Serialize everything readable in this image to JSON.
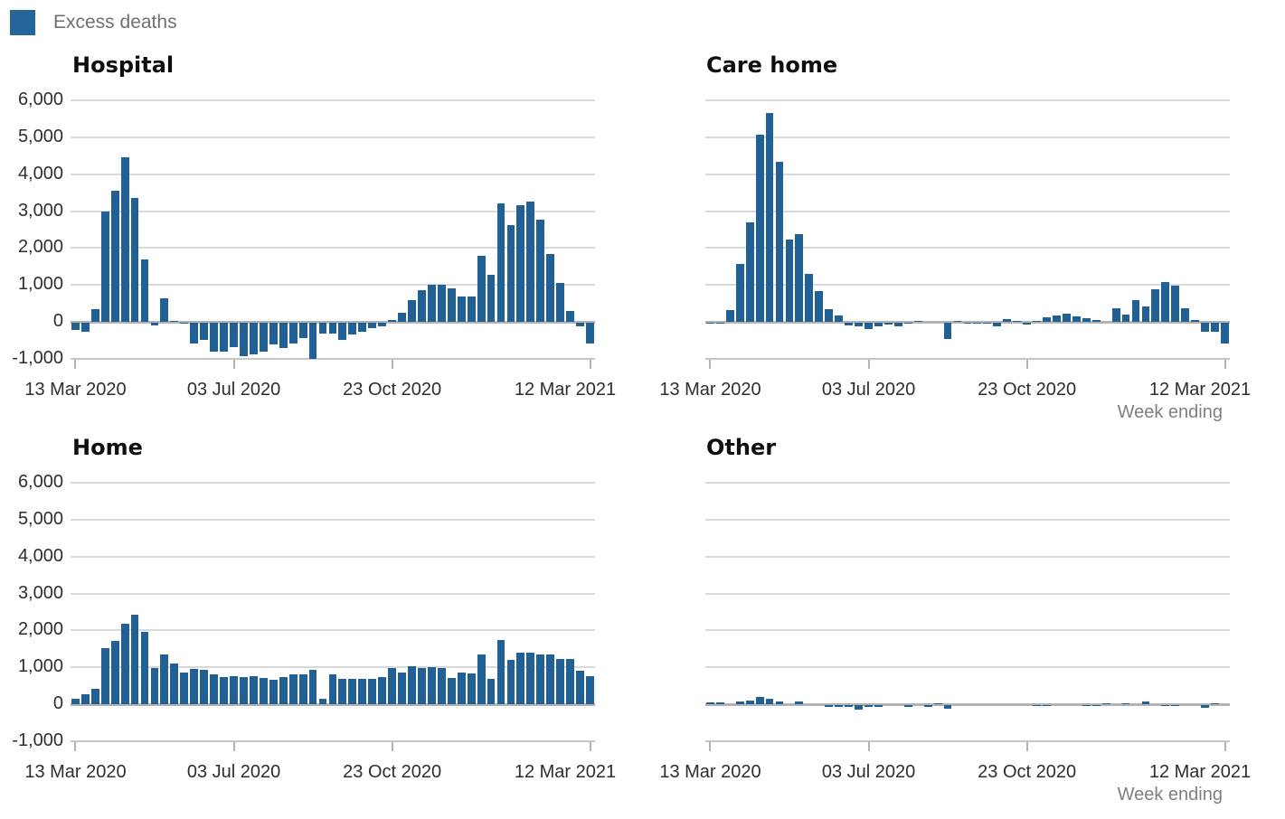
{
  "legend": {
    "label": "Excess deaths",
    "swatch_color": "#24669a"
  },
  "week_ending_label": "Week ending",
  "colors": {
    "bar": "#206095",
    "gridline": "#d9d9d9",
    "zero_line": "#b3b3b3",
    "axis_line": "#c6c6c6",
    "tick": "#b3b3b3",
    "axis_text": "#2e2e2e",
    "muted_text": "#7f7f80"
  },
  "chart_data": [
    {
      "type": "bar",
      "title": "Hospital",
      "series_name": "Excess deaths",
      "x_unit": "week",
      "n_weeks": 53,
      "x_range": [
        "13 Mar 2020",
        "12 Mar 2021"
      ],
      "ylim": [
        -1000,
        6000
      ],
      "grid": true,
      "y_axis_visible": true,
      "week_ending_visible": false,
      "y_ticks": [
        {
          "value": 6000,
          "label": "6,000"
        },
        {
          "value": 5000,
          "label": "5,000"
        },
        {
          "value": 4000,
          "label": "4,000"
        },
        {
          "value": 3000,
          "label": "3,000"
        },
        {
          "value": 2000,
          "label": "2,000"
        },
        {
          "value": 1000,
          "label": "1,000"
        },
        {
          "value": 0,
          "label": "0"
        },
        {
          "value": -1000,
          "label": "-1,000"
        }
      ],
      "x_ticks": [
        {
          "week": 1,
          "label": "13 Mar 2020"
        },
        {
          "week": 17,
          "label": "03 Jul 2020"
        },
        {
          "week": 33,
          "label": "23 Oct 2020"
        },
        {
          "week": 53,
          "label": "12 Mar 2021"
        }
      ],
      "values": [
        -200,
        -250,
        350,
        2980,
        3550,
        4450,
        3350,
        1700,
        -70,
        650,
        30,
        -30,
        -550,
        -450,
        -780,
        -790,
        -650,
        -890,
        -850,
        -780,
        -580,
        -690,
        -550,
        -420,
        -970,
        -300,
        -280,
        -450,
        -320,
        -250,
        -150,
        -100,
        50,
        250,
        600,
        850,
        1000,
        1000,
        900,
        700,
        700,
        1780,
        1280,
        3220,
        2620,
        3170,
        3270,
        2780,
        1850,
        1050,
        300,
        -100,
        -550
      ]
    },
    {
      "type": "bar",
      "title": "Care home",
      "series_name": "Excess deaths",
      "x_unit": "week",
      "n_weeks": 53,
      "x_range": [
        "13 Mar 2020",
        "12 Mar 2021"
      ],
      "ylim": [
        -1000,
        6000
      ],
      "grid": true,
      "y_axis_visible": false,
      "week_ending_visible": true,
      "y_ticks": [
        {
          "value": 6000,
          "label": "6,000"
        },
        {
          "value": 5000,
          "label": "5,000"
        },
        {
          "value": 4000,
          "label": "4,000"
        },
        {
          "value": 3000,
          "label": "3,000"
        },
        {
          "value": 2000,
          "label": "2,000"
        },
        {
          "value": 1000,
          "label": "1,000"
        },
        {
          "value": 0,
          "label": "0"
        },
        {
          "value": -1000,
          "label": "-1,000"
        }
      ],
      "x_ticks": [
        {
          "week": 1,
          "label": "13 Mar 2020"
        },
        {
          "week": 17,
          "label": "03 Jul 2020"
        },
        {
          "week": 33,
          "label": "23 Oct 2020"
        },
        {
          "week": 53,
          "label": "12 Mar 2021"
        }
      ],
      "values": [
        -30,
        -10,
        320,
        1570,
        2700,
        5080,
        5660,
        4330,
        2230,
        2380,
        1300,
        840,
        340,
        180,
        -60,
        -90,
        -180,
        -90,
        -40,
        -90,
        -20,
        30,
        0,
        0,
        -440,
        25,
        -20,
        -25,
        -30,
        -90,
        70,
        40,
        -55,
        25,
        130,
        180,
        215,
        160,
        90,
        60,
        0,
        380,
        200,
        590,
        430,
        885,
        1080,
        985,
        375,
        50,
        -230,
        -230,
        -560
      ]
    },
    {
      "type": "bar",
      "title": "Home",
      "series_name": "Excess deaths",
      "x_unit": "week",
      "n_weeks": 53,
      "x_range": [
        "13 Mar 2020",
        "12 Mar 2021"
      ],
      "ylim": [
        -1000,
        6000
      ],
      "grid": true,
      "y_axis_visible": true,
      "week_ending_visible": false,
      "y_ticks": [
        {
          "value": 6000,
          "label": "6,000"
        },
        {
          "value": 5000,
          "label": "5,000"
        },
        {
          "value": 4000,
          "label": "4,000"
        },
        {
          "value": 3000,
          "label": "3,000"
        },
        {
          "value": 2000,
          "label": "2,000"
        },
        {
          "value": 1000,
          "label": "1,000"
        },
        {
          "value": 0,
          "label": "0"
        },
        {
          "value": -1000,
          "label": "-1,000"
        }
      ],
      "x_ticks": [
        {
          "week": 1,
          "label": "13 Mar 2020"
        },
        {
          "week": 17,
          "label": "03 Jul 2020"
        },
        {
          "week": 33,
          "label": "23 Oct 2020"
        },
        {
          "week": 53,
          "label": "12 Mar 2021"
        }
      ],
      "values": [
        150,
        280,
        420,
        1520,
        1720,
        2170,
        2420,
        1960,
        980,
        1360,
        1110,
        860,
        950,
        930,
        800,
        730,
        770,
        730,
        770,
        720,
        670,
        730,
        810,
        820,
        930,
        150,
        810,
        700,
        700,
        700,
        700,
        750,
        975,
        870,
        1030,
        990,
        1010,
        990,
        720,
        870,
        830,
        1360,
        690,
        1750,
        1200,
        1400,
        1410,
        1340,
        1350,
        1230,
        1220,
        900,
        760
      ]
    },
    {
      "type": "bar",
      "title": "Other",
      "series_name": "Excess deaths",
      "x_unit": "week",
      "n_weeks": 53,
      "x_range": [
        "13 Mar 2020",
        "12 Mar 2021"
      ],
      "ylim": [
        -1000,
        6000
      ],
      "grid": true,
      "y_axis_visible": false,
      "week_ending_visible": true,
      "y_ticks": [
        {
          "value": 6000,
          "label": "6,000"
        },
        {
          "value": 5000,
          "label": "5,000"
        },
        {
          "value": 4000,
          "label": "4,000"
        },
        {
          "value": 3000,
          "label": "3,000"
        },
        {
          "value": 2000,
          "label": "2,000"
        },
        {
          "value": 1000,
          "label": "1,000"
        },
        {
          "value": 0,
          "label": "0"
        },
        {
          "value": -1000,
          "label": "-1,000"
        }
      ],
      "x_ticks": [
        {
          "week": 1,
          "label": "13 Mar 2020"
        },
        {
          "week": 17,
          "label": "03 Jul 2020"
        },
        {
          "week": 33,
          "label": "23 Oct 2020"
        },
        {
          "week": 53,
          "label": "12 Mar 2021"
        }
      ],
      "values": [
        60,
        50,
        0,
        70,
        110,
        200,
        160,
        80,
        0,
        80,
        0,
        0,
        -40,
        -50,
        -50,
        -130,
        -50,
        -40,
        0,
        0,
        -40,
        0,
        -40,
        30,
        -90,
        0,
        0,
        0,
        0,
        0,
        0,
        0,
        0,
        -25,
        -30,
        0,
        0,
        0,
        -25,
        -25,
        35,
        0,
        25,
        0,
        70,
        0,
        -25,
        -25,
        0,
        0,
        -80,
        20,
        0
      ]
    }
  ]
}
